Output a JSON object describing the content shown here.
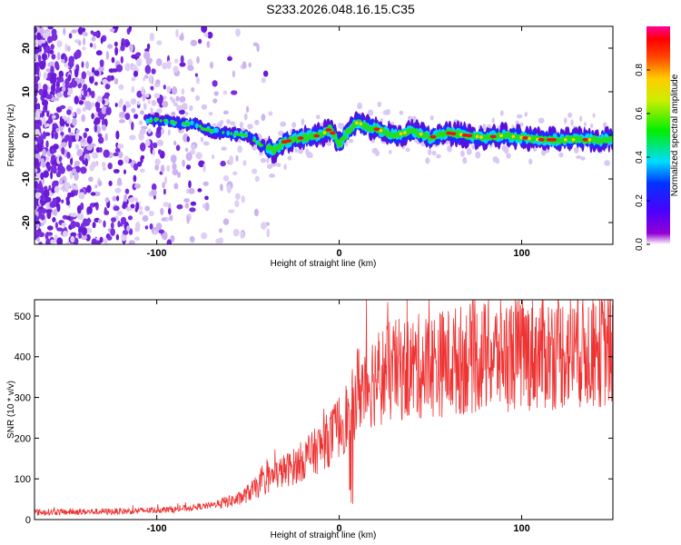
{
  "title": "S233.2026.048.16.15.C35",
  "chart_data": [
    {
      "type": "heatmap",
      "xlabel": "Height of straight line (km)",
      "ylabel": "Frequency (Hz)",
      "xlim": [
        -167,
        150
      ],
      "ylim": [
        -25,
        25
      ],
      "xticks": [
        -100,
        0,
        100
      ],
      "yticks": [
        -20,
        -10,
        0,
        10,
        20
      ],
      "ridge": [
        [
          -100,
          3.5
        ],
        [
          -80,
          2.5
        ],
        [
          -70,
          1
        ],
        [
          -60,
          0.5
        ],
        [
          -50,
          0
        ],
        [
          -45,
          -1.5
        ],
        [
          -40,
          -3
        ],
        [
          -35,
          -3.5
        ],
        [
          -30,
          -1.5
        ],
        [
          -25,
          -1
        ],
        [
          -20,
          -0.5
        ],
        [
          -10,
          0
        ],
        [
          -5,
          1.5
        ],
        [
          0,
          -2
        ],
        [
          5,
          1
        ],
        [
          10,
          3
        ],
        [
          15,
          2
        ],
        [
          20,
          1.5
        ],
        [
          30,
          0
        ],
        [
          40,
          1
        ],
        [
          50,
          -0.5
        ],
        [
          60,
          0.5
        ],
        [
          70,
          0
        ],
        [
          80,
          -0.5
        ],
        [
          90,
          0
        ],
        [
          100,
          -0.5
        ],
        [
          110,
          -1
        ],
        [
          120,
          -1
        ],
        [
          130,
          -1
        ],
        [
          140,
          -1
        ],
        [
          150,
          -1
        ]
      ],
      "colorbar": {
        "label": "Normalized spectral amplitude",
        "ticks": [
          0.0,
          0.2,
          0.4,
          0.6,
          0.8
        ],
        "range": [
          0,
          1
        ]
      }
    },
    {
      "type": "line",
      "xlabel": "Height of straight line (km)",
      "ylabel": "SNR (10 * v/v)",
      "xlim": [
        -167,
        150
      ],
      "ylim": [
        0,
        540
      ],
      "xticks": [
        -100,
        0,
        100
      ],
      "yticks": [
        0,
        100,
        200,
        300,
        400,
        500
      ],
      "color": "#ee3333",
      "envelope": [
        [
          -167,
          18
        ],
        [
          -120,
          20
        ],
        [
          -90,
          25
        ],
        [
          -70,
          35
        ],
        [
          -55,
          50
        ],
        [
          -45,
          80
        ],
        [
          -35,
          110
        ],
        [
          -25,
          130
        ],
        [
          -15,
          160
        ],
        [
          -5,
          200
        ],
        [
          0,
          230
        ],
        [
          5,
          260
        ],
        [
          10,
          320
        ],
        [
          20,
          350
        ],
        [
          30,
          365
        ],
        [
          50,
          380
        ],
        [
          70,
          395
        ],
        [
          90,
          405
        ],
        [
          110,
          410
        ],
        [
          130,
          415
        ],
        [
          150,
          420
        ]
      ]
    }
  ]
}
